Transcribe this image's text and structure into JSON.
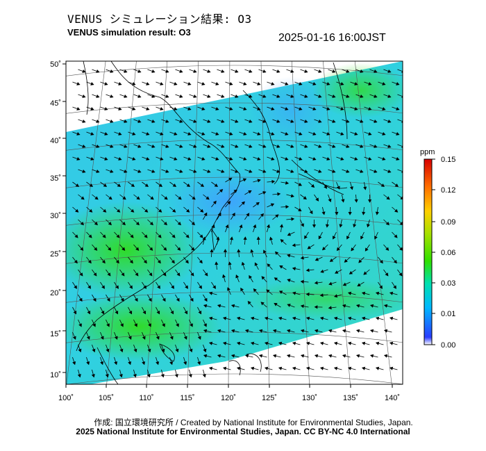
{
  "title_jp": "VENUS シミュレーション結果: O3",
  "title_en": "VENUS simulation result: O3",
  "timestamp": "2025-01-16 16:00JST",
  "map": {
    "lon_labels": [
      "100˚",
      "105˚",
      "110˚",
      "115˚",
      "120˚",
      "125˚",
      "130˚",
      "135˚",
      "140˚"
    ],
    "lat_labels": [
      "50˚",
      "45˚",
      "40˚",
      "35˚",
      "30˚",
      "25˚",
      "20˚",
      "15˚",
      "10˚"
    ]
  },
  "colorbar": {
    "unit": "ppm",
    "tick_labels": [
      "0.15",
      "0.12",
      "0.09",
      "0.06",
      "0.03",
      "0.01",
      "0.00"
    ],
    "colors": [
      "#ffffff",
      "#2a3cff",
      "#00b8ff",
      "#00e0a0",
      "#2fe000",
      "#c8e000",
      "#ffb000",
      "#ff4000",
      "#d00000"
    ]
  },
  "credit_line1": "作成: 国立環境研究所 / Created by National Institute for Environmental Studies, Japan.",
  "credit_line2": "2025 National Institute for Environmental Studies, Japan. CC BY-NC 4.0 International"
}
